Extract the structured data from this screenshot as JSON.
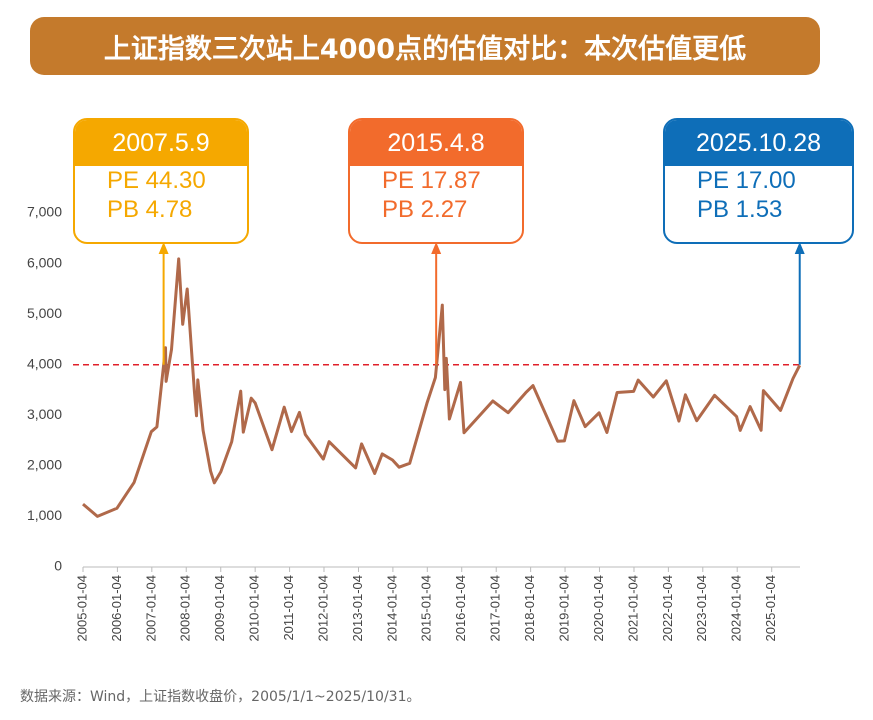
{
  "chart_data": {
    "type": "line",
    "title": "上证指数三次站上4000点的估值对比：本次估值更低",
    "source": "数据来源：Wind，上证指数收盘价，2005/1/1~2025/10/31。",
    "x": [
      "2005-01-04",
      "2005-06-06",
      "2005-12-30",
      "2006-06-30",
      "2006-12-29",
      "2007-02-27",
      "2007-05-29",
      "2007-06-04",
      "2007-08-01",
      "2007-10-16",
      "2007-11-28",
      "2008-01-14",
      "2008-03-31",
      "2008-04-22",
      "2008-05-06",
      "2008-07-01",
      "2008-09-18",
      "2008-10-28",
      "2009-01-05",
      "2009-04-30",
      "2009-08-04",
      "2009-08-31",
      "2009-11-23",
      "2010-01-04",
      "2010-07-02",
      "2010-11-08",
      "2011-01-25",
      "2011-04-18",
      "2011-06-20",
      "2011-12-28",
      "2012-02-27",
      "2012-12-04",
      "2013-02-06",
      "2013-06-25",
      "2013-09-12",
      "2013-12-31",
      "2014-03-11",
      "2014-07-01",
      "2014-12-31",
      "2015-03-31",
      "2015-06-12",
      "2015-07-08",
      "2015-07-24",
      "2015-08-26",
      "2015-12-22",
      "2016-01-28",
      "2016-11-29",
      "2017-05-10",
      "2017-11-13",
      "2018-01-29",
      "2018-10-18",
      "2018-12-28",
      "2019-04-08",
      "2019-08-06",
      "2019-12-31",
      "2020-03-23",
      "2020-07-09",
      "2020-12-31",
      "2021-02-18",
      "2021-07-28",
      "2021-12-13",
      "2022-04-26",
      "2022-07-04",
      "2022-10-31",
      "2023-05-09",
      "2023-12-29",
      "2024-02-05",
      "2024-05-20",
      "2024-09-13",
      "2024-10-08",
      "2025-04-07",
      "2025-08-18",
      "2025-10-28"
    ],
    "series": [
      {
        "name": "上证指数",
        "color": "#b0694a",
        "values": [
          1243,
          1000,
          1161,
          1672,
          2675,
          2771,
          4334,
          3670,
          4300,
          6092,
          4800,
          5497,
          3472,
          2990,
          3700,
          2700,
          1895,
          1664,
          1880,
          2477,
          3478,
          2667,
          3338,
          3243,
          2319,
          3159,
          2677,
          3057,
          2621,
          2134,
          2478,
          1959,
          2434,
          1849,
          2237,
          2116,
          1974,
          2050,
          3235,
          3748,
          5178,
          3507,
          4124,
          2927,
          3651,
          2655,
          3282,
          3052,
          3447,
          3587,
          2486,
          2493,
          3288,
          2777,
          3050,
          2660,
          3450,
          3473,
          3696,
          3361,
          3681,
          2886,
          3405,
          2893,
          3395,
          2975,
          2702,
          3171,
          2704,
          3489,
          3096,
          3728,
          3988
        ]
      }
    ],
    "xlim": [
      "2005-01-04",
      "2025-10-31"
    ],
    "xticks": [
      "2005-01-04",
      "2006-01-04",
      "2007-01-04",
      "2008-01-04",
      "2009-01-04",
      "2010-01-04",
      "2011-01-04",
      "2012-01-04",
      "2013-01-04",
      "2014-01-04",
      "2015-01-04",
      "2016-01-04",
      "2017-01-04",
      "2018-01-04",
      "2019-01-04",
      "2020-01-04",
      "2021-01-04",
      "2022-01-04",
      "2023-01-04",
      "2024-01-04",
      "2025-01-04"
    ],
    "ylim": [
      0,
      7000
    ],
    "yticks": [
      0,
      {
        "value": 1000,
        "label": "1,000"
      },
      {
        "value": 2000,
        "label": "2,000"
      },
      {
        "value": 3000,
        "label": "3,000"
      },
      {
        "value": 4000,
        "label": "4,000"
      },
      {
        "value": 5000,
        "label": "5,000"
      },
      {
        "value": 6000,
        "label": "6,000"
      },
      {
        "value": 7000,
        "label": "7,000"
      }
    ],
    "hline": {
      "value": 4000,
      "color": "#e0202a"
    },
    "annotations": [
      {
        "date": "2007.5.9",
        "pe": "PE 44.30",
        "pb": "PB 4.78",
        "color": "#f5a800"
      },
      {
        "date": "2015.4.8",
        "pe": "PE 17.87",
        "pb": "PB 2.27",
        "color": "#f26b2c"
      },
      {
        "date": "2025.10.28",
        "pe": "PE 17.00",
        "pb": "PB 1.53",
        "color": "#0e6eb8"
      }
    ]
  }
}
